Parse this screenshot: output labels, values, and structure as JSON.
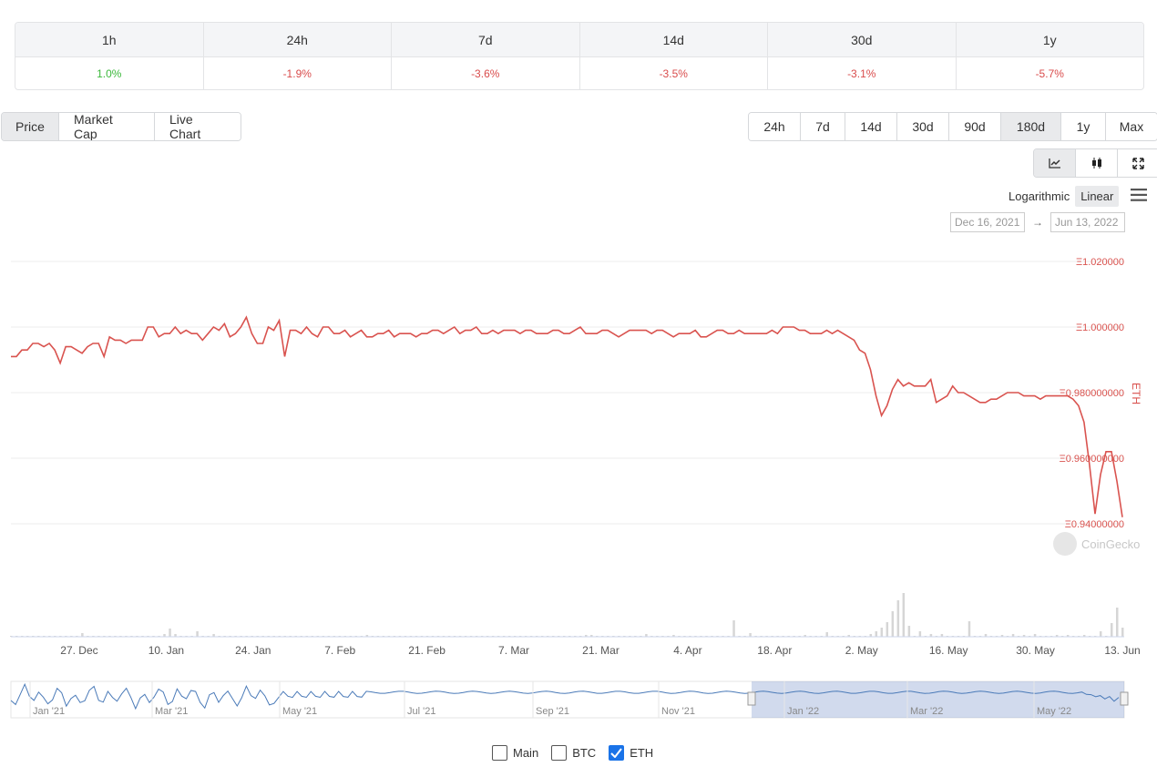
{
  "changes": {
    "headers": [
      "1h",
      "24h",
      "7d",
      "14d",
      "30d",
      "1y"
    ],
    "values": [
      "1.0%",
      "-1.9%",
      "-3.6%",
      "-3.5%",
      "-3.1%",
      "-5.7%"
    ]
  },
  "metric_tabs": [
    "Price",
    "Market Cap",
    "Live Chart"
  ],
  "metric_active": "Price",
  "range_tabs": [
    "24h",
    "7d",
    "14d",
    "30d",
    "90d",
    "180d",
    "1y",
    "Max"
  ],
  "range_active": "180d",
  "chart_types": [
    "line-chart-icon",
    "candlestick-icon",
    "expand-icon"
  ],
  "scale": {
    "log_label": "Logarithmic",
    "linear_label": "Linear",
    "active": "Linear"
  },
  "date_range": {
    "from": "Dec 16, 2021",
    "to": "Jun 13, 2022",
    "arrow": "→"
  },
  "watermark": "CoinGecko",
  "legend_toggles": [
    {
      "label": "Main",
      "checked": false
    },
    {
      "label": "BTC",
      "checked": false
    },
    {
      "label": "ETH",
      "checked": true
    }
  ],
  "colors": {
    "price_line": "#d9534f",
    "nav_line": "#4a7ab8",
    "volume": "#cfcfcf",
    "positive": "#3cb83c",
    "negative": "#d94c4c"
  },
  "chart_data": {
    "type": "line",
    "ylabel": "ETH",
    "y_ticks": [
      "Ξ1.020000",
      "Ξ1.000000",
      "Ξ0.980000000",
      "Ξ0.960000000",
      "Ξ0.94000000"
    ],
    "y_tick_values": [
      1.02,
      1.0,
      0.98,
      0.96,
      0.94
    ],
    "ylim": [
      0.94,
      1.02
    ],
    "x_ticks": [
      "27. Dec",
      "10. Jan",
      "24. Jan",
      "7. Feb",
      "21. Feb",
      "7. Mar",
      "21. Mar",
      "4. Apr",
      "18. Apr",
      "2. May",
      "16. May",
      "30. May",
      "13. Jun"
    ],
    "x_start": "2021-12-16",
    "x_end": "2022-06-13",
    "series": [
      {
        "name": "ETH",
        "values": [
          0.991,
          0.991,
          0.993,
          0.993,
          0.995,
          0.995,
          0.994,
          0.995,
          0.993,
          0.989,
          0.994,
          0.994,
          0.993,
          0.992,
          0.994,
          0.995,
          0.995,
          0.991,
          0.997,
          0.996,
          0.996,
          0.995,
          0.996,
          0.996,
          0.996,
          1.0,
          1.0,
          0.997,
          0.998,
          0.998,
          1.0,
          0.998,
          0.999,
          0.998,
          0.998,
          0.996,
          0.998,
          1.0,
          0.999,
          1.001,
          0.997,
          0.998,
          1.0,
          1.003,
          0.998,
          0.995,
          0.995,
          1.0,
          0.999,
          1.002,
          0.991,
          0.999,
          0.999,
          0.998,
          1.0,
          0.998,
          0.997,
          1.0,
          1.0,
          0.998,
          0.998,
          0.999,
          0.997,
          0.998,
          0.999,
          0.997,
          0.997,
          0.998,
          0.998,
          0.999,
          0.997,
          0.998,
          0.998,
          0.998,
          0.997,
          0.998,
          0.998,
          0.999,
          0.999,
          0.998,
          0.999,
          1.0,
          0.998,
          0.999,
          0.999,
          1.0,
          0.998,
          0.998,
          0.999,
          0.998,
          0.999,
          0.999,
          0.999,
          0.998,
          0.999,
          0.999,
          0.998,
          0.998,
          0.998,
          0.999,
          0.999,
          0.998,
          0.998,
          0.999,
          1.0,
          0.998,
          0.998,
          0.998,
          0.999,
          0.999,
          0.998,
          0.997,
          0.998,
          0.999,
          0.999,
          0.999,
          0.999,
          0.998,
          0.999,
          0.999,
          0.998,
          0.997,
          0.998,
          0.998,
          0.998,
          0.999,
          0.997,
          0.997,
          0.998,
          0.999,
          0.999,
          0.998,
          0.998,
          0.999,
          0.998,
          0.998,
          0.998,
          0.998,
          0.998,
          0.999,
          0.998,
          1.0,
          1.0,
          1.0,
          0.999,
          0.999,
          0.998,
          0.998,
          0.998,
          0.999,
          0.998,
          0.999,
          0.998,
          0.997,
          0.996,
          0.993,
          0.992,
          0.987,
          0.979,
          0.973,
          0.976,
          0.981,
          0.984,
          0.982,
          0.983,
          0.982,
          0.982,
          0.982,
          0.984,
          0.977,
          0.978,
          0.979,
          0.982,
          0.98,
          0.98,
          0.979,
          0.978,
          0.977,
          0.977,
          0.978,
          0.978,
          0.979,
          0.98,
          0.98,
          0.98,
          0.979,
          0.979,
          0.979,
          0.978,
          0.979,
          0.979,
          0.979,
          0.979,
          0.979,
          0.978,
          0.976,
          0.971,
          0.958,
          0.943,
          0.955,
          0.962,
          0.962,
          0.953,
          0.942
        ]
      }
    ]
  }
}
